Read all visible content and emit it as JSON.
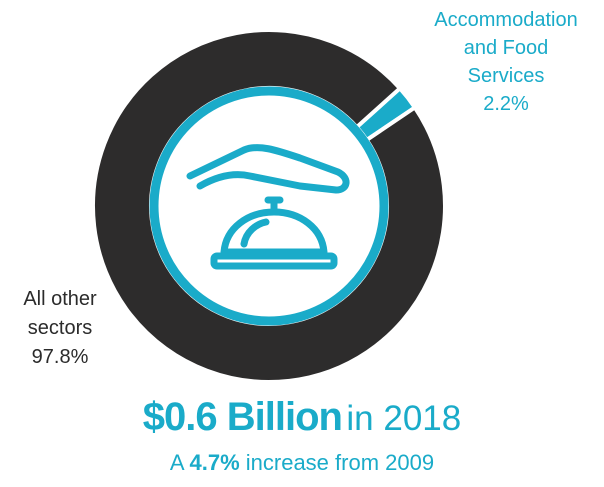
{
  "chart_data": {
    "type": "pie",
    "slices": [
      {
        "label": "Accommodation and Food Services",
        "percent": 2.2,
        "display": "2.2%",
        "color": "#1aabc9"
      },
      {
        "label": "All other sectors",
        "percent": 97.8,
        "display": "97.8%",
        "color": "#2d2c2c"
      }
    ],
    "icon": "service-bell-icon"
  },
  "labels": {
    "accom": [
      "Accommodation",
      "and Food",
      "Services",
      "2.2%"
    ],
    "other": [
      "All other",
      "sectors",
      "97.8%"
    ]
  },
  "headline": {
    "amount": "$0.6 Billion",
    "suffix": "in 2018"
  },
  "subline": {
    "prefix": "A",
    "percent": "4.7%",
    "suffix": "increase from 2009"
  },
  "colors": {
    "accent": "#1aabc9",
    "dark": "#2d2c2c",
    "text": "#2b2b2b"
  }
}
